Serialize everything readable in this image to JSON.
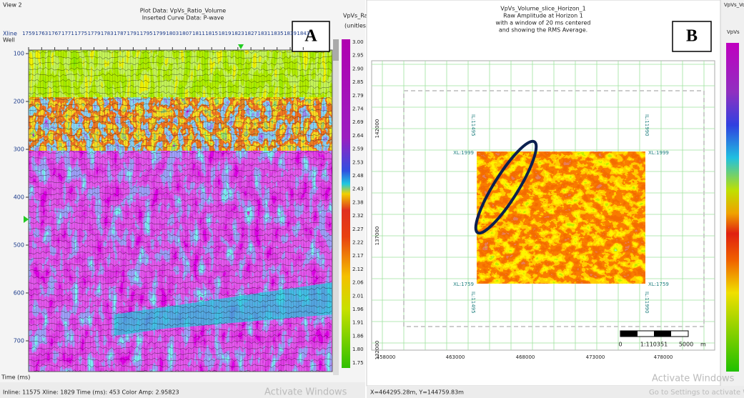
{
  "panel_a": {
    "view_label": "View 2",
    "title_lines": [
      "Plot Data: VpVs_Ratio_Volume",
      "Inserted Curve Data: P-wave"
    ],
    "xline_label": "Xline",
    "well_label": "Well",
    "xline_ticks": [
      "1759",
      "1763",
      "1767",
      "1771",
      "1775",
      "1779",
      "1783",
      "1787",
      "1791",
      "1795",
      "1799",
      "1803",
      "1807",
      "1811",
      "1815",
      "1819",
      "1823",
      "1827",
      "1831",
      "1835",
      "1839",
      "1843"
    ],
    "time_ticks": [
      "100",
      "200",
      "300",
      "400",
      "500",
      "600",
      "700"
    ],
    "time_label": "Time (ms)",
    "status": "Inline: 11575 Xline: 1829 Time (ms): 453 Color Amp: 2.95823",
    "colorbar": {
      "title": "VpVs_Ratio",
      "unit": "(unitless)",
      "ticks": [
        "3.00",
        "2.95",
        "2.90",
        "2.85",
        "2.79",
        "2.74",
        "2.69",
        "2.64",
        "2.59",
        "2.53",
        "2.48",
        "2.43",
        "2.38",
        "2.32",
        "2.27",
        "2.22",
        "2.17",
        "2.12",
        "2.06",
        "2.01",
        "1.96",
        "1.91",
        "1.86",
        "1.80",
        "1.75"
      ]
    },
    "badge": "A",
    "watermark": "Activate Windows"
  },
  "panel_b": {
    "title_lines": [
      "VpVs_Volume_slice_Horizon_1",
      "Raw Amplitude at Horizon 1",
      "with a window of 20 ms centered",
      "and showing the RMS Average."
    ],
    "badge": "B",
    "y_ticks": [
      "142000",
      "137000",
      "132000"
    ],
    "x_ticks": [
      "458000",
      "463000",
      "468000",
      "473000",
      "478000"
    ],
    "xl_top": "XL:1999",
    "xl_bottom": "XL:1759",
    "il_left": "IL:11495",
    "il_right": "IL:11990",
    "scale": {
      "zero": "0",
      "ratio": "1:110351",
      "length": "5000",
      "unit": "m"
    },
    "status": "X=464295.28m, Y=144759.83m",
    "colorbar_title": "VpVs_Volu",
    "colorbar_label": "VpVs",
    "watermark": "Activate Windows",
    "watermark_sub": "Go to Settings to activate Windows"
  }
}
